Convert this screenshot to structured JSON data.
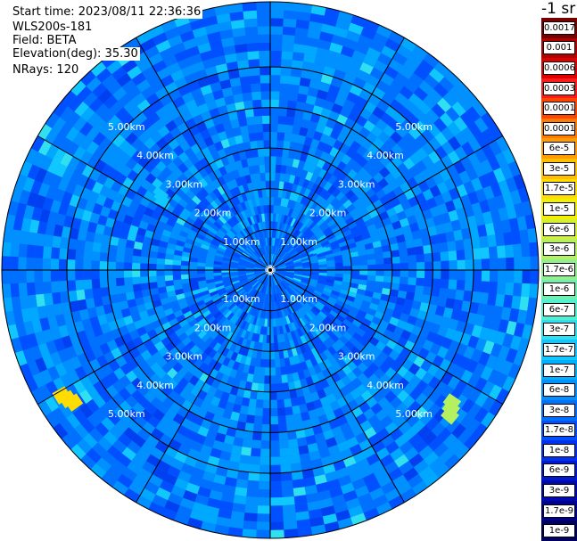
{
  "info": {
    "start_time": "Start time: 2023/08/11 22:36:36",
    "instrument": "WLS200s-181",
    "field": "Field: BETA",
    "elevation": "Elevation(deg): 35.30",
    "nrays": "NRays: 120"
  },
  "colorbar": {
    "unit_label": "-1 sr",
    "labels": [
      "0.0017",
      "0.001",
      "0.0006",
      "0.0003",
      "0.00017",
      "0.0001",
      "6e-5",
      "3e-5",
      "1.7e-5",
      "1e-5",
      "6e-6",
      "3e-6",
      "1.7e-6",
      "1e-6",
      "6e-7",
      "3e-7",
      "1.7e-7",
      "1e-7",
      "6e-8",
      "3e-8",
      "1.7e-8",
      "1e-8",
      "6e-9",
      "3e-9",
      "1.7e-9",
      "1e-9"
    ],
    "colors": [
      "#7a0000",
      "#b00000",
      "#dd0000",
      "#ff1a1a",
      "#ff4400",
      "#ff7a00",
      "#ff9d00",
      "#ffbe00",
      "#ffdd00",
      "#f0f000",
      "#d4f030",
      "#b4f060",
      "#90f090",
      "#70f0b0",
      "#50f0d0",
      "#30e0f0",
      "#10c8ff",
      "#00b0ff",
      "#0090ff",
      "#0070ff",
      "#0050ff",
      "#0030f0",
      "#0018d0",
      "#0008b0",
      "#000090",
      "#000060"
    ]
  },
  "chart_data": {
    "type": "heatmap",
    "projection": "polar (PPI scan)",
    "field": "BETA",
    "elevation_deg": 35.3,
    "n_rays": 120,
    "range_rings_km": [
      1,
      2,
      3,
      4,
      5
    ],
    "range_labels": [
      "1.00km",
      "2.00km",
      "3.00km",
      "4.00km",
      "5.00km"
    ],
    "max_range_km": 6.6,
    "azimuth_gridlines_deg": [
      0,
      30,
      60,
      90,
      120,
      150,
      180,
      210,
      240,
      270,
      300,
      330
    ],
    "dominant_value": "1e-8 to 1e-7",
    "hotspots": [
      {
        "azimuth_deg": 236,
        "range_km": 5.9,
        "value": "1.7e-5"
      },
      {
        "azimuth_deg": 126,
        "range_km": 5.6,
        "value": "3e-6"
      },
      {
        "azimuth_deg": 302,
        "range_km": 3.2,
        "value": "1.7e-7"
      },
      {
        "azimuth_deg": 67,
        "range_km": 1.3,
        "value": "1.7e-7"
      }
    ]
  }
}
